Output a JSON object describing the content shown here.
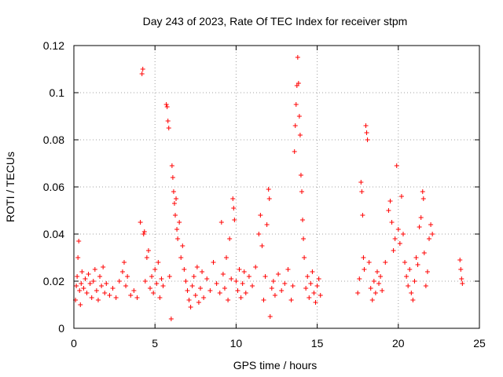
{
  "chart_data": {
    "type": "scatter",
    "title": "Day 243 of 2023, Rate Of TEC Index for receiver stpm",
    "xlabel": "GPS time / hours",
    "ylabel": "ROTI / TECUs",
    "xlim": [
      0,
      25
    ],
    "ylim": [
      0,
      0.12
    ],
    "x_ticks": [
      "0",
      "5",
      "10",
      "15",
      "20",
      "25"
    ],
    "y_ticks": [
      "0",
      "0.02",
      "0.04",
      "0.06",
      "0.08",
      "0.1",
      "0.12"
    ],
    "grid": true,
    "legend": "none",
    "marker": "+",
    "color": "#ff0000",
    "series": [
      {
        "points": [
          [
            0.1,
            0.012
          ],
          [
            0.15,
            0.018
          ],
          [
            0.2,
            0.022
          ],
          [
            0.25,
            0.03
          ],
          [
            0.3,
            0.037
          ],
          [
            0.35,
            0.016
          ],
          [
            0.4,
            0.01
          ],
          [
            0.45,
            0.019
          ],
          [
            0.5,
            0.024
          ],
          [
            0.6,
            0.017
          ],
          [
            0.7,
            0.021
          ],
          [
            0.8,
            0.015
          ],
          [
            0.9,
            0.023
          ],
          [
            1.0,
            0.019
          ],
          [
            1.1,
            0.013
          ],
          [
            1.2,
            0.02
          ],
          [
            1.3,
            0.025
          ],
          [
            1.4,
            0.016
          ],
          [
            1.5,
            0.012
          ],
          [
            1.6,
            0.022
          ],
          [
            1.7,
            0.018
          ],
          [
            1.8,
            0.026
          ],
          [
            1.9,
            0.015
          ],
          [
            2.0,
            0.019
          ],
          [
            2.2,
            0.014
          ],
          [
            2.4,
            0.017
          ],
          [
            2.6,
            0.013
          ],
          [
            2.8,
            0.02
          ],
          [
            3.0,
            0.024
          ],
          [
            3.1,
            0.028
          ],
          [
            3.2,
            0.018
          ],
          [
            3.3,
            0.022
          ],
          [
            3.5,
            0.014
          ],
          [
            3.7,
            0.016
          ],
          [
            3.9,
            0.013
          ],
          [
            4.1,
            0.045
          ],
          [
            4.2,
            0.108
          ],
          [
            4.25,
            0.11
          ],
          [
            4.3,
            0.04
          ],
          [
            4.35,
            0.041
          ],
          [
            4.4,
            0.02
          ],
          [
            4.5,
            0.03
          ],
          [
            4.6,
            0.033
          ],
          [
            4.7,
            0.017
          ],
          [
            4.8,
            0.022
          ],
          [
            4.9,
            0.015
          ],
          [
            5.0,
            0.025
          ],
          [
            5.1,
            0.019
          ],
          [
            5.2,
            0.028
          ],
          [
            5.3,
            0.013
          ],
          [
            5.4,
            0.021
          ],
          [
            5.5,
            0.018
          ],
          [
            5.7,
            0.095
          ],
          [
            5.75,
            0.094
          ],
          [
            5.8,
            0.088
          ],
          [
            5.85,
            0.085
          ],
          [
            5.9,
            0.022
          ],
          [
            6.0,
            0.004
          ],
          [
            6.05,
            0.069
          ],
          [
            6.1,
            0.064
          ],
          [
            6.15,
            0.058
          ],
          [
            6.2,
            0.053
          ],
          [
            6.25,
            0.048
          ],
          [
            6.3,
            0.055
          ],
          [
            6.35,
            0.042
          ],
          [
            6.4,
            0.038
          ],
          [
            6.5,
            0.045
          ],
          [
            6.6,
            0.03
          ],
          [
            6.7,
            0.035
          ],
          [
            6.8,
            0.025
          ],
          [
            6.9,
            0.02
          ],
          [
            7.0,
            0.016
          ],
          [
            7.1,
            0.012
          ],
          [
            7.2,
            0.009
          ],
          [
            7.3,
            0.018
          ],
          [
            7.4,
            0.022
          ],
          [
            7.5,
            0.014
          ],
          [
            7.6,
            0.026
          ],
          [
            7.7,
            0.011
          ],
          [
            7.8,
            0.017
          ],
          [
            7.9,
            0.024
          ],
          [
            8.0,
            0.013
          ],
          [
            8.2,
            0.021
          ],
          [
            8.4,
            0.016
          ],
          [
            8.6,
            0.028
          ],
          [
            8.8,
            0.019
          ],
          [
            9.0,
            0.015
          ],
          [
            9.1,
            0.045
          ],
          [
            9.2,
            0.023
          ],
          [
            9.3,
            0.017
          ],
          [
            9.4,
            0.03
          ],
          [
            9.5,
            0.012
          ],
          [
            9.6,
            0.038
          ],
          [
            9.7,
            0.021
          ],
          [
            9.8,
            0.055
          ],
          [
            9.85,
            0.051
          ],
          [
            9.9,
            0.046
          ],
          [
            10.0,
            0.02
          ],
          [
            10.1,
            0.016
          ],
          [
            10.2,
            0.025
          ],
          [
            10.3,
            0.013
          ],
          [
            10.4,
            0.019
          ],
          [
            10.5,
            0.024
          ],
          [
            10.6,
            0.015
          ],
          [
            10.8,
            0.022
          ],
          [
            11.0,
            0.018
          ],
          [
            11.2,
            0.026
          ],
          [
            11.4,
            0.04
          ],
          [
            11.5,
            0.048
          ],
          [
            11.6,
            0.035
          ],
          [
            11.7,
            0.012
          ],
          [
            11.8,
            0.022
          ],
          [
            11.9,
            0.044
          ],
          [
            12.0,
            0.059
          ],
          [
            12.05,
            0.055
          ],
          [
            12.1,
            0.005
          ],
          [
            12.2,
            0.017
          ],
          [
            12.3,
            0.02
          ],
          [
            12.4,
            0.014
          ],
          [
            12.6,
            0.023
          ],
          [
            12.8,
            0.016
          ],
          [
            13.0,
            0.019
          ],
          [
            13.2,
            0.025
          ],
          [
            13.4,
            0.012
          ],
          [
            13.5,
            0.018
          ],
          [
            13.6,
            0.075
          ],
          [
            13.65,
            0.086
          ],
          [
            13.7,
            0.095
          ],
          [
            13.75,
            0.103
          ],
          [
            13.8,
            0.115
          ],
          [
            13.85,
            0.104
          ],
          [
            13.9,
            0.09
          ],
          [
            13.95,
            0.082
          ],
          [
            14.0,
            0.065
          ],
          [
            14.05,
            0.058
          ],
          [
            14.1,
            0.046
          ],
          [
            14.15,
            0.038
          ],
          [
            14.2,
            0.03
          ],
          [
            14.3,
            0.017
          ],
          [
            14.4,
            0.022
          ],
          [
            14.5,
            0.013
          ],
          [
            14.6,
            0.019
          ],
          [
            14.7,
            0.024
          ],
          [
            14.8,
            0.015
          ],
          [
            14.9,
            0.011
          ],
          [
            15.0,
            0.018
          ],
          [
            15.1,
            0.021
          ],
          [
            15.2,
            0.014
          ],
          [
            17.5,
            0.015
          ],
          [
            17.6,
            0.021
          ],
          [
            17.7,
            0.062
          ],
          [
            17.75,
            0.058
          ],
          [
            17.8,
            0.048
          ],
          [
            17.85,
            0.03
          ],
          [
            17.9,
            0.025
          ],
          [
            18.0,
            0.086
          ],
          [
            18.05,
            0.083
          ],
          [
            18.1,
            0.08
          ],
          [
            18.2,
            0.028
          ],
          [
            18.3,
            0.017
          ],
          [
            18.4,
            0.012
          ],
          [
            18.5,
            0.02
          ],
          [
            18.6,
            0.015
          ],
          [
            18.7,
            0.024
          ],
          [
            18.8,
            0.019
          ],
          [
            18.9,
            0.022
          ],
          [
            19.0,
            0.016
          ],
          [
            19.2,
            0.028
          ],
          [
            19.4,
            0.05
          ],
          [
            19.5,
            0.054
          ],
          [
            19.6,
            0.045
          ],
          [
            19.7,
            0.033
          ],
          [
            19.8,
            0.038
          ],
          [
            19.9,
            0.069
          ],
          [
            20.0,
            0.042
          ],
          [
            20.1,
            0.036
          ],
          [
            20.2,
            0.056
          ],
          [
            20.3,
            0.04
          ],
          [
            20.4,
            0.028
          ],
          [
            20.5,
            0.022
          ],
          [
            20.6,
            0.018
          ],
          [
            20.7,
            0.025
          ],
          [
            20.8,
            0.015
          ],
          [
            20.9,
            0.012
          ],
          [
            21.0,
            0.02
          ],
          [
            21.1,
            0.03
          ],
          [
            21.2,
            0.027
          ],
          [
            21.3,
            0.043
          ],
          [
            21.4,
            0.047
          ],
          [
            21.5,
            0.058
          ],
          [
            21.55,
            0.055
          ],
          [
            21.6,
            0.032
          ],
          [
            21.7,
            0.018
          ],
          [
            21.8,
            0.024
          ],
          [
            21.9,
            0.038
          ],
          [
            22.0,
            0.044
          ],
          [
            22.1,
            0.04
          ],
          [
            23.8,
            0.029
          ],
          [
            23.85,
            0.025
          ],
          [
            23.9,
            0.021
          ],
          [
            23.95,
            0.019
          ]
        ]
      }
    ]
  }
}
